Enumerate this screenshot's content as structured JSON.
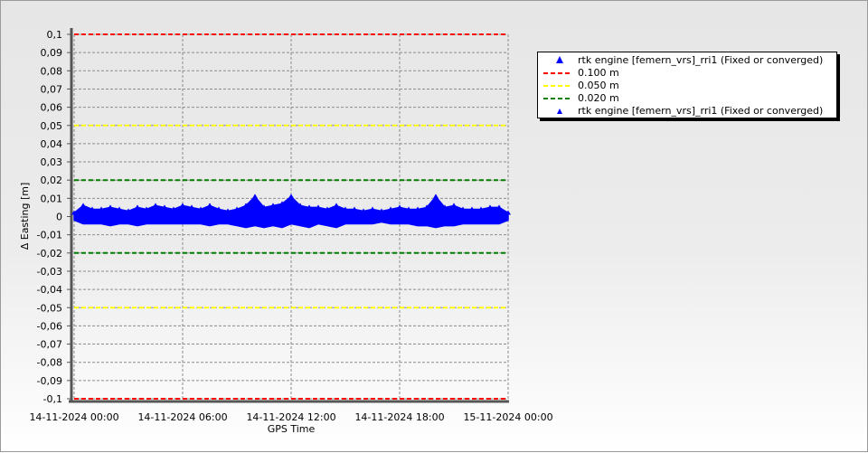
{
  "chart_data": {
    "type": "scatter",
    "xlabel": "GPS Time",
    "ylabel": "Δ Easting [m]",
    "ylim": [
      -0.1,
      0.1
    ],
    "y_ticks": [
      "0,1",
      "0,09",
      "0,08",
      "0,07",
      "0,06",
      "0,05",
      "0,04",
      "0,03",
      "0,02",
      "0,01",
      "0",
      "-0,01",
      "-0,02",
      "-0,03",
      "-0,04",
      "-0,05",
      "-0,06",
      "-0,07",
      "-0,08",
      "-0,09",
      "-0,1"
    ],
    "x_ticks": [
      "14-11-2024 00:00",
      "14-11-2024 06:00",
      "14-11-2024 12:00",
      "14-11-2024 18:00",
      "15-11-2024 00:00"
    ],
    "xlim": [
      "14-11-2024 00:00",
      "15-11-2024 00:00"
    ],
    "grid": true,
    "legend_position": "right",
    "series": [
      {
        "name": "rtk engine [femern_vrs]_rri1 (Fixed or converged)",
        "color": "#0000ff",
        "marker": "triangle",
        "x_hours": [
          0,
          0.5,
          1,
          1.5,
          2,
          2.5,
          3,
          3.5,
          4,
          4.5,
          5,
          5.5,
          6,
          6.5,
          7,
          7.5,
          8,
          8.5,
          9,
          9.5,
          10,
          10.5,
          11,
          11.5,
          12,
          12.5,
          13,
          13.5,
          14,
          14.5,
          15,
          15.5,
          16,
          16.5,
          17,
          17.5,
          18,
          18.5,
          19,
          19.5,
          20,
          20.5,
          21,
          21.5,
          22,
          22.5,
          23,
          23.5,
          24
        ],
        "upper": [
          0.002,
          0.006,
          0.004,
          0.004,
          0.005,
          0.004,
          0.003,
          0.005,
          0.004,
          0.006,
          0.005,
          0.004,
          0.006,
          0.005,
          0.004,
          0.006,
          0.004,
          0.003,
          0.004,
          0.006,
          0.011,
          0.005,
          0.006,
          0.007,
          0.011,
          0.006,
          0.005,
          0.005,
          0.004,
          0.006,
          0.004,
          0.004,
          0.003,
          0.004,
          0.003,
          0.004,
          0.005,
          0.004,
          0.004,
          0.005,
          0.011,
          0.005,
          0.006,
          0.004,
          0.004,
          0.004,
          0.005,
          0.005,
          0.002
        ],
        "lower": [
          -0.002,
          -0.004,
          -0.004,
          -0.004,
          -0.005,
          -0.004,
          -0.004,
          -0.005,
          -0.004,
          -0.004,
          -0.004,
          -0.004,
          -0.004,
          -0.004,
          -0.004,
          -0.005,
          -0.004,
          -0.004,
          -0.005,
          -0.006,
          -0.005,
          -0.006,
          -0.005,
          -0.006,
          -0.004,
          -0.005,
          -0.006,
          -0.004,
          -0.005,
          -0.006,
          -0.004,
          -0.004,
          -0.004,
          -0.004,
          -0.003,
          -0.004,
          -0.004,
          -0.004,
          -0.005,
          -0.005,
          -0.006,
          -0.005,
          -0.005,
          -0.004,
          -0.004,
          -0.004,
          -0.004,
          -0.004,
          -0.002
        ]
      }
    ],
    "thresholds": [
      {
        "name": "0.100 m",
        "value": 0.1,
        "color": "#ff0000"
      },
      {
        "name": "0.050 m",
        "value": 0.05,
        "color": "#ffff00"
      },
      {
        "name": "0.020 m",
        "value": 0.02,
        "color": "#008000"
      }
    ]
  },
  "legend": {
    "items": [
      {
        "label": "rtk engine [femern_vrs]_rri1 (Fixed or converged)",
        "symbol": "triangle",
        "color": "#0000ff"
      },
      {
        "label": "0.100 m",
        "symbol": "dash",
        "color": "#ff0000"
      },
      {
        "label": "0.050 m",
        "symbol": "dash",
        "color": "#ffff00"
      },
      {
        "label": "0.020 m",
        "symbol": "dash",
        "color": "#008000"
      },
      {
        "label": "rtk engine [femern_vrs]_rri1 (Fixed or converged)",
        "symbol": "small-triangle",
        "color": "#0000ff"
      }
    ]
  }
}
